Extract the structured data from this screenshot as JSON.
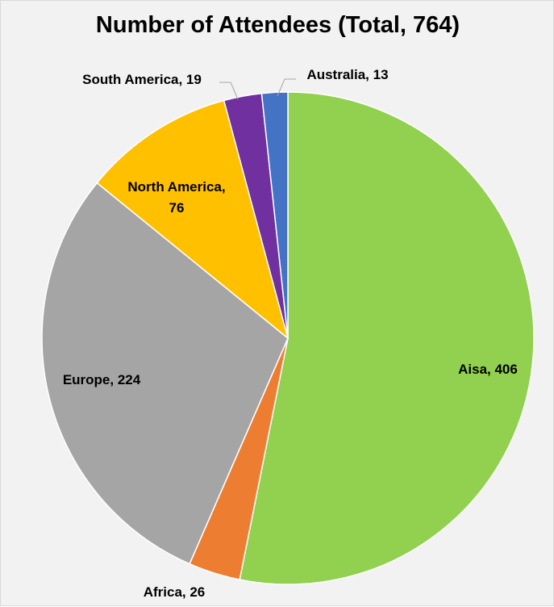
{
  "chart_data": {
    "type": "pie",
    "title": "Number of Attendees (Total, 764)",
    "slices": [
      {
        "name": "Aisa",
        "value": 406,
        "label": "Aisa, 406",
        "color": "#92d050"
      },
      {
        "name": "Africa",
        "value": 26,
        "label": "Africa, 26",
        "color": "#ed7d31"
      },
      {
        "name": "Europe",
        "value": 224,
        "label": "Europe, 224",
        "color": "#a5a5a5"
      },
      {
        "name": "North America",
        "value": 76,
        "label": "North America, 76",
        "color": "#ffc000"
      },
      {
        "name": "South America",
        "value": 19,
        "label": "South America, 19",
        "color": "#7030a0"
      },
      {
        "name": "Australia",
        "value": 13,
        "label": "Australia, 13",
        "color": "#4472c4"
      }
    ],
    "start_angle_deg": 0,
    "direction": "clockwise",
    "legend": "none"
  }
}
